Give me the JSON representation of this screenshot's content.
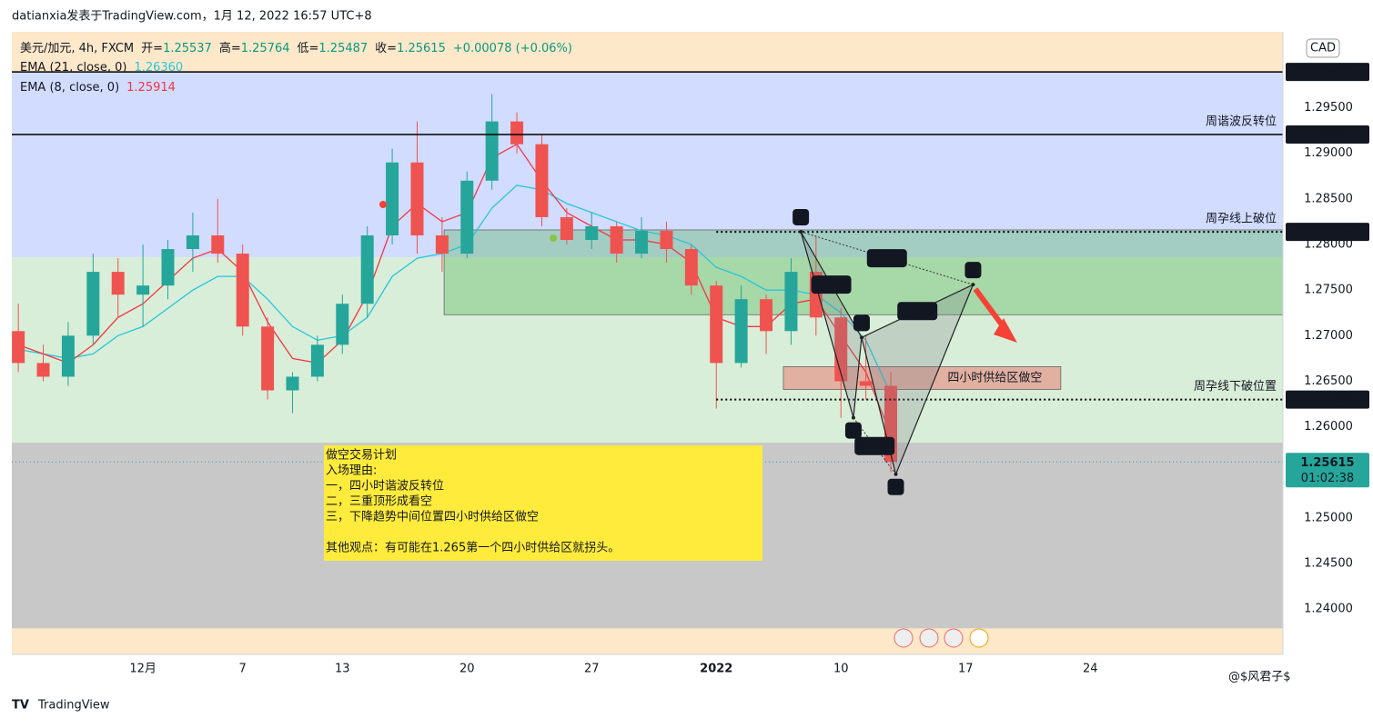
{
  "header": "datianxia发表于TradingView.com，1月 12, 2022 16:57 UTC+8",
  "footer": {
    "brand": "TradingView",
    "watermark": "@$风君子$"
  },
  "chart_data": {
    "type": "candlestick",
    "symbol": "美元/加元, 4h, FXCM",
    "ohlc_legend": [
      {
        "label": "开=",
        "value": 1.25537
      },
      {
        "label": "高=",
        "value": 1.25764
      },
      {
        "label": "低=",
        "value": 1.25487
      },
      {
        "label": "收=",
        "value": 1.25615
      }
    ],
    "change": "+0.00078 (+0.06%)",
    "open": [
      1.2705,
      1.267,
      1.2655,
      1.27,
      1.277,
      1.2745,
      1.2755,
      1.2795,
      1.281,
      1.279,
      1.271,
      1.264,
      1.2655,
      1.269,
      1.2735,
      1.281,
      1.289,
      1.281,
      1.279,
      1.287,
      1.2935,
      1.291,
      1.283,
      1.2805,
      1.282,
      1.279,
      1.2815,
      1.2795,
      1.2755,
      1.267,
      1.274,
      1.2705,
      1.277,
      1.272,
      1.265,
      1.2645
    ],
    "high": [
      1.2735,
      1.269,
      1.2715,
      1.279,
      1.2785,
      1.28,
      1.2805,
      1.2835,
      1.285,
      1.28,
      1.272,
      1.266,
      1.27,
      1.2745,
      1.282,
      1.2905,
      1.2935,
      1.283,
      1.288,
      1.2965,
      1.2945,
      1.292,
      1.284,
      1.2835,
      1.2825,
      1.283,
      1.2825,
      1.28,
      1.276,
      1.2755,
      1.2745,
      1.2785,
      1.281,
      1.273,
      1.27,
      1.266
    ],
    "low": [
      1.266,
      1.265,
      1.2645,
      1.269,
      1.272,
      1.271,
      1.274,
      1.277,
      1.278,
      1.27,
      1.263,
      1.2615,
      1.265,
      1.268,
      1.272,
      1.28,
      1.279,
      1.277,
      1.2785,
      1.286,
      1.29,
      1.282,
      1.28,
      1.2795,
      1.278,
      1.2785,
      1.278,
      1.2745,
      1.262,
      1.2665,
      1.268,
      1.269,
      1.27,
      1.261,
      1.263,
      1.255
    ],
    "close": [
      1.267,
      1.2655,
      1.27,
      1.277,
      1.2745,
      1.2755,
      1.2795,
      1.281,
      1.279,
      1.271,
      1.264,
      1.2655,
      1.269,
      1.2735,
      1.281,
      1.289,
      1.281,
      1.279,
      1.287,
      1.2935,
      1.291,
      1.283,
      1.2805,
      1.282,
      1.279,
      1.2815,
      1.2795,
      1.2755,
      1.267,
      1.274,
      1.2705,
      1.277,
      1.272,
      1.265,
      1.2645,
      1.25615
    ],
    "up_color": "#26a69a",
    "down_color": "#ef5350",
    "indicators": [
      {
        "name": "EMA (21, close, 0)",
        "color": "#26c6da",
        "last": {
          "value": 1.2636,
          "label": "1.26360"
        },
        "values": [
          1.2685,
          1.268,
          1.2675,
          1.268,
          1.27,
          1.271,
          1.273,
          1.275,
          1.2765,
          1.2765,
          1.274,
          1.271,
          1.2695,
          1.27,
          1.272,
          1.2765,
          1.2785,
          1.279,
          1.28,
          1.284,
          1.2865,
          1.286,
          1.2845,
          1.2835,
          1.2825,
          1.2815,
          1.281,
          1.28,
          1.2775,
          1.2765,
          1.275,
          1.275,
          1.2745,
          1.2725,
          1.2695,
          1.2636
        ]
      },
      {
        "name": "EMA (8, close, 0)",
        "color": "#f23645",
        "last": 1.25914,
        "values": [
          1.269,
          1.268,
          1.267,
          1.269,
          1.272,
          1.2735,
          1.276,
          1.2785,
          1.2795,
          1.277,
          1.2715,
          1.2675,
          1.267,
          1.2695,
          1.2745,
          1.282,
          1.2845,
          1.2825,
          1.2835,
          1.2895,
          1.291,
          1.287,
          1.2835,
          1.282,
          1.2805,
          1.2805,
          1.28,
          1.278,
          1.272,
          1.271,
          1.271,
          1.2735,
          1.274,
          1.27,
          1.266,
          1.25914
        ]
      }
    ],
    "xlim": [
      -0.26,
      50.73
    ],
    "xticks": [
      {
        "value": 5,
        "label": "12月"
      },
      {
        "value": 9,
        "label": "7"
      },
      {
        "value": 13,
        "label": "13"
      },
      {
        "value": 18,
        "label": "20"
      },
      {
        "value": 23,
        "label": "27"
      },
      {
        "value": 28,
        "label": "2022"
      },
      {
        "value": 33,
        "label": "10"
      },
      {
        "value": 38,
        "label": "17"
      },
      {
        "value": 43,
        "label": "24"
      }
    ],
    "ylim": [
      1.23504,
      1.30333
    ],
    "yticks": [
      {
        "value": 1.295,
        "label": "1.29500"
      },
      {
        "value": 1.29,
        "label": "1.29000"
      },
      {
        "value": 1.285,
        "label": "1.28500"
      },
      {
        "value": 1.28,
        "label": "1.28000"
      },
      {
        "value": 1.275,
        "label": "1.27500"
      },
      {
        "value": 1.27,
        "label": "1.27000"
      },
      {
        "value": 1.265,
        "label": "1.26500"
      },
      {
        "value": 1.26,
        "label": "1.26000"
      },
      {
        "value": 1.255,
        "label": "1.25500"
      },
      {
        "value": 1.25,
        "label": "1.25000"
      },
      {
        "value": 1.245,
        "label": "1.24500"
      },
      {
        "value": 1.24,
        "label": "1.24000"
      }
    ],
    "currency": "CAD",
    "last_price": 1.25615,
    "countdown": "01:02:38",
    "zones": [
      {
        "from": 1.29893,
        "to": 1.2786,
        "color": "#d1dcff"
      },
      {
        "from": 1.2786,
        "to": 1.25826,
        "color": "#d8eed8"
      },
      {
        "from": 1.25826,
        "to": 1.2379,
        "color": "#c8c8c8"
      }
    ],
    "levels": [
      {
        "value": 1.29893,
        "style": "solid"
      },
      {
        "value": 1.29207,
        "style": "solid",
        "text": "周谐波反转位"
      },
      {
        "value": 1.28138,
        "style": "dotted",
        "text": "周孕线上破位"
      },
      {
        "value": 1.26299,
        "style": "dotted",
        "text": "周孕线下破位置"
      }
    ],
    "boxes": [
      {
        "x": [
          17.08,
          50.73
        ],
        "y": [
          1.2816,
          1.2723
        ],
        "color": "rgba(76,175,80,0.35)"
      },
      {
        "x": [
          30.69,
          41.82
        ],
        "y": [
          1.2666,
          1.2641
        ],
        "color": "rgba(239,83,80,0.4)",
        "text": "四小时供给区做空"
      }
    ],
    "pattern": {
      "points": [
        {
          "label": "X",
          "x": 31.39,
          "y": 1.2814
        },
        {
          "label": "A",
          "x": 33.5,
          "y": 1.261
        },
        {
          "label": "B",
          "x": 33.83,
          "y": 1.2698
        },
        {
          "label": "C",
          "x": 35.2,
          "y": 1.2548
        },
        {
          "label": "D",
          "x": 38.3,
          "y": 1.2756
        }
      ],
      "ratios": [
        0.717,
        0.429,
        1.385,
        1.737
      ]
    },
    "note": [
      "做空交易计划",
      "入场理由:",
      "一，四小时谐波反转位",
      "二，三重顶形成看空",
      "三，下降趋势中间位置四小时供给区做空",
      "",
      "其他观点：有可能在1.265第一个四小时供给区就拐头。"
    ]
  }
}
